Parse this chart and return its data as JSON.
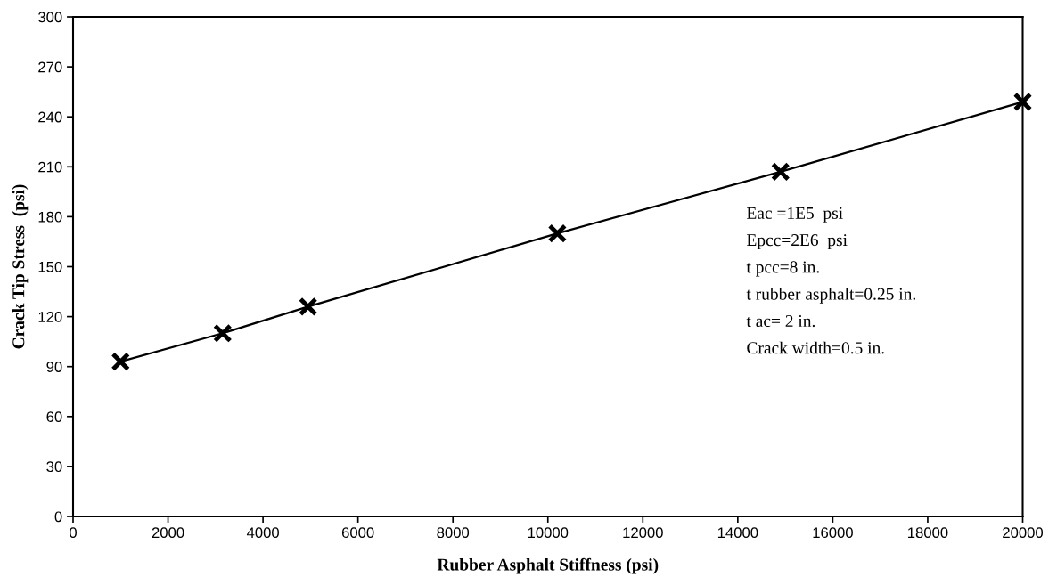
{
  "chart_data": {
    "type": "line",
    "xlabel": "Rubber Asphalt Stiffness (psi)",
    "ylabel": "Crack Tip Stress  (psi)",
    "x": [
      1000,
      3150,
      4950,
      10200,
      14900,
      20000
    ],
    "series": [
      {
        "color": "#000000",
        "values": [
          93,
          110,
          126,
          170,
          207,
          249
        ]
      }
    ],
    "marker": "cross",
    "line_style": "solid",
    "grid": false,
    "xlim": [
      0,
      20000
    ],
    "xticks": [
      0,
      2000,
      4000,
      6000,
      8000,
      10000,
      12000,
      14000,
      16000,
      18000,
      20000
    ],
    "ylim": [
      0,
      300
    ],
    "yticks": [
      0,
      30,
      60,
      90,
      120,
      150,
      180,
      210,
      240,
      270,
      300
    ],
    "annotations": [
      "Eac =1E5  psi",
      "Epcc=2E6  psi",
      "t pcc=8 in.",
      "t rubber asphalt=0.25 in.",
      "t ac= 2 in.",
      "Crack width=0.5 in."
    ]
  }
}
